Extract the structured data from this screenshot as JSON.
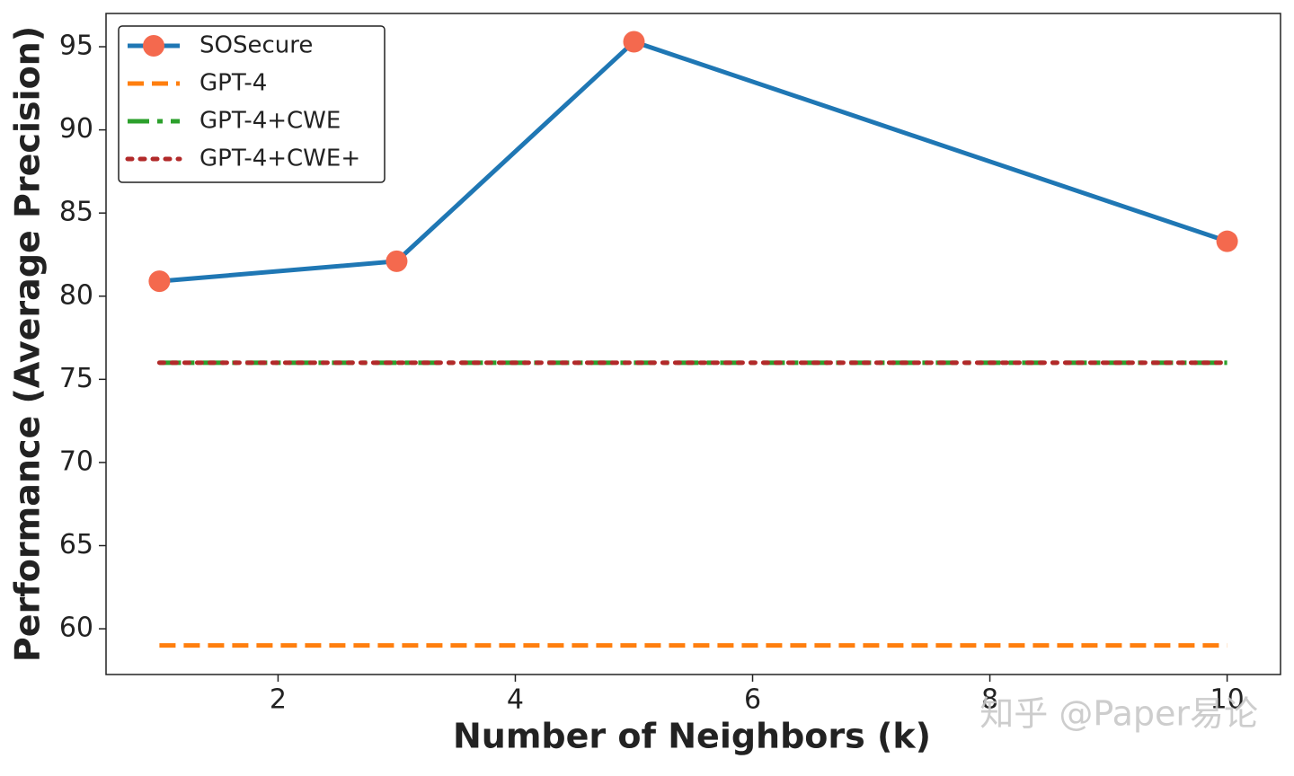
{
  "chart_data": {
    "type": "line",
    "x": [
      1,
      3,
      5,
      10
    ],
    "xlabel": "Number of Neighbors (k)",
    "ylabel": "Performance (Average Precision)",
    "xlim": [
      0.55,
      10.45
    ],
    "ylim": [
      57.25,
      97.0
    ],
    "xticks": [
      2,
      4,
      6,
      8,
      10
    ],
    "yticks": [
      60,
      65,
      70,
      75,
      80,
      85,
      90,
      95
    ],
    "legend": "upper left",
    "watermark": "知乎 @Paper易论",
    "series": [
      {
        "name": "SOSecure",
        "color": "#1f77b4",
        "marker_color": "#f4694e",
        "dash": "solid",
        "values": [
          80.9,
          82.1,
          95.3,
          83.3
        ]
      },
      {
        "name": "GPT-4",
        "color": "#ff7f0e",
        "dash": "dashed",
        "values": [
          59.0,
          59.0,
          59.0,
          59.0
        ]
      },
      {
        "name": "GPT-4+CWE",
        "color": "#2ca02c",
        "dash": "dashdot",
        "values": [
          76.0,
          76.0,
          76.0,
          76.0
        ]
      },
      {
        "name": "GPT-4+CWE+",
        "color": "#b22a2a",
        "dash": "dotted",
        "values": [
          76.0,
          76.0,
          76.0,
          76.0
        ]
      }
    ]
  }
}
